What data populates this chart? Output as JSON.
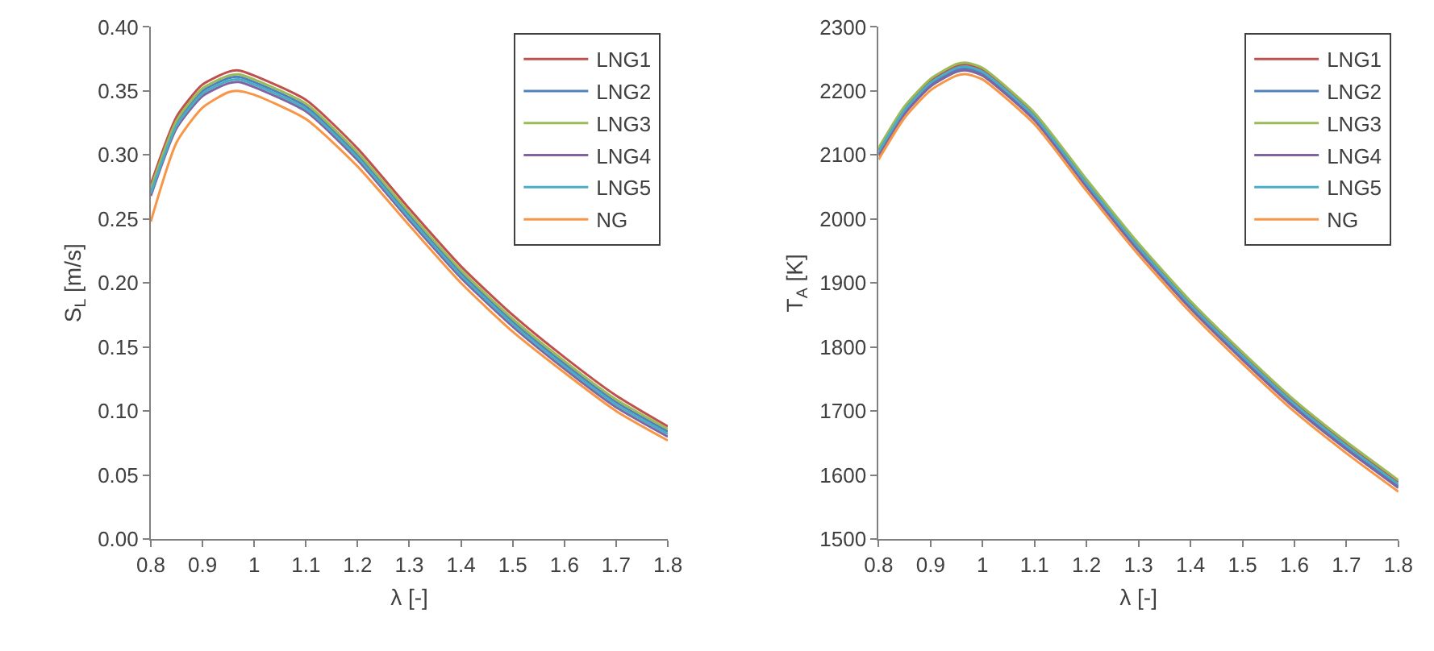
{
  "chart_data": [
    {
      "type": "line",
      "xlabel": "λ [-]",
      "ylabel": "S$_{L}$ [m/s]",
      "legend": "top right",
      "grid": false,
      "marker": "none",
      "line_style": "solid",
      "x": [
        0.8,
        0.85,
        0.9,
        0.95,
        0.97,
        1.0,
        1.1,
        1.2,
        1.3,
        1.4,
        1.5,
        1.6,
        1.7,
        1.8
      ],
      "xlim": [
        0.8,
        1.8
      ],
      "xticks": [
        0.8,
        0.9,
        1,
        1.1,
        1.2,
        1.3,
        1.4,
        1.5,
        1.6,
        1.7,
        1.8
      ],
      "ylim": [
        0,
        0.4
      ],
      "yticks": [
        {
          "value": 0,
          "label": "0.00"
        },
        {
          "value": 0.05,
          "label": "0.05"
        },
        {
          "value": 0.1,
          "label": "0.10"
        },
        {
          "value": 0.15,
          "label": "0.15"
        },
        {
          "value": 0.2,
          "label": "0.20"
        },
        {
          "value": 0.25,
          "label": "0.25"
        },
        {
          "value": 0.3,
          "label": "0.30"
        },
        {
          "value": 0.35,
          "label": "0.35"
        },
        {
          "value": 0.4,
          "label": "0.40"
        }
      ],
      "series": [
        {
          "name": "LNG1",
          "color": "#c0504d",
          "values": [
            0.277,
            0.33,
            0.355,
            0.365,
            0.366,
            0.362,
            0.343,
            0.305,
            0.258,
            0.213,
            0.175,
            0.142,
            0.112,
            0.088
          ]
        },
        {
          "name": "LNG2",
          "color": "#4f81bd",
          "values": [
            0.272,
            0.325,
            0.35,
            0.36,
            0.361,
            0.357,
            0.338,
            0.3,
            0.253,
            0.208,
            0.17,
            0.137,
            0.107,
            0.084
          ]
        },
        {
          "name": "LNG3",
          "color": "#9bbb59",
          "values": [
            0.274,
            0.327,
            0.352,
            0.362,
            0.363,
            0.359,
            0.34,
            0.302,
            0.255,
            0.21,
            0.172,
            0.139,
            0.109,
            0.086
          ]
        },
        {
          "name": "LNG4",
          "color": "#8064a2",
          "values": [
            0.268,
            0.321,
            0.346,
            0.356,
            0.357,
            0.353,
            0.334,
            0.296,
            0.249,
            0.204,
            0.166,
            0.133,
            0.103,
            0.08
          ]
        },
        {
          "name": "LNG5",
          "color": "#4bacc6",
          "values": [
            0.27,
            0.323,
            0.348,
            0.358,
            0.359,
            0.355,
            0.336,
            0.298,
            0.251,
            0.206,
            0.168,
            0.135,
            0.105,
            0.082
          ]
        },
        {
          "name": "NG",
          "color": "#f79646",
          "values": [
            0.248,
            0.31,
            0.337,
            0.349,
            0.35,
            0.347,
            0.328,
            0.291,
            0.245,
            0.2,
            0.162,
            0.13,
            0.1,
            0.077
          ]
        }
      ]
    },
    {
      "type": "line",
      "xlabel": "λ [-]",
      "ylabel": "T$_{A}$ [K]",
      "legend": "top right",
      "grid": false,
      "marker": "none",
      "line_style": "solid",
      "x": [
        0.8,
        0.85,
        0.9,
        0.95,
        0.97,
        1.0,
        1.1,
        1.2,
        1.3,
        1.4,
        1.5,
        1.6,
        1.7,
        1.8
      ],
      "xlim": [
        0.8,
        1.8
      ],
      "xticks": [
        0.8,
        0.9,
        1,
        1.1,
        1.2,
        1.3,
        1.4,
        1.5,
        1.6,
        1.7,
        1.8
      ],
      "ylim": [
        1500,
        2300
      ],
      "yticks": [
        1500,
        1600,
        1700,
        1800,
        1900,
        2000,
        2100,
        2200,
        2300
      ],
      "series": [
        {
          "name": "LNG1",
          "color": "#c0504d",
          "values": [
            2108,
            2173,
            2216,
            2239,
            2241,
            2233,
            2163,
            2059,
            1959,
            1869,
            1789,
            1714,
            1649,
            1589
          ]
        },
        {
          "name": "LNG2",
          "color": "#4f81bd",
          "values": [
            2102,
            2167,
            2210,
            2233,
            2235,
            2227,
            2157,
            2053,
            1953,
            1863,
            1783,
            1708,
            1643,
            1583
          ]
        },
        {
          "name": "LNG3",
          "color": "#9bbb59",
          "values": [
            2111,
            2176,
            2219,
            2242,
            2244,
            2236,
            2166,
            2062,
            1962,
            1872,
            1792,
            1717,
            1652,
            1592
          ]
        },
        {
          "name": "LNG4",
          "color": "#8064a2",
          "values": [
            2099,
            2164,
            2207,
            2230,
            2232,
            2224,
            2154,
            2050,
            1950,
            1860,
            1780,
            1705,
            1640,
            1580
          ]
        },
        {
          "name": "LNG5",
          "color": "#4bacc6",
          "values": [
            2105,
            2170,
            2213,
            2236,
            2238,
            2230,
            2160,
            2056,
            1956,
            1866,
            1786,
            1711,
            1646,
            1586
          ]
        },
        {
          "name": "NG",
          "color": "#f79646",
          "values": [
            2093,
            2158,
            2201,
            2224,
            2226,
            2218,
            2148,
            2044,
            1944,
            1854,
            1774,
            1699,
            1634,
            1574
          ]
        }
      ]
    }
  ]
}
